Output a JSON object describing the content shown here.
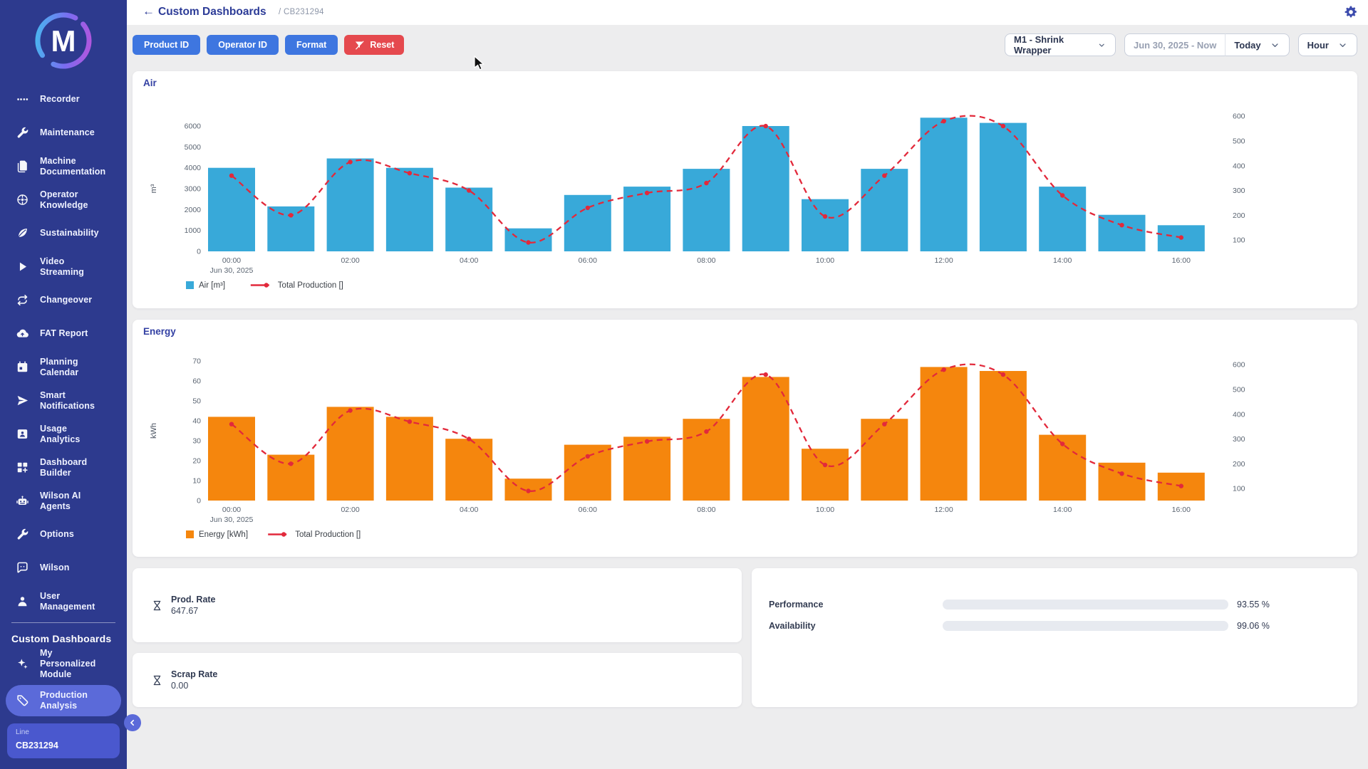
{
  "titlebar": {
    "title": "Custom Dashboards",
    "breadcrumb": "/ CB231294"
  },
  "toolbar": {
    "filter_buttons": [
      {
        "label": "Product ID"
      },
      {
        "label": "Operator ID"
      },
      {
        "label": "Format"
      }
    ],
    "reset_button": {
      "label": "Reset",
      "icon": "filter-off"
    },
    "machine_dropdown": {
      "value": "M1 - Shrink Wrapper",
      "icon": "chevron-down"
    },
    "date_range_input": {
      "value": "Jun 30, 2025 - Now"
    },
    "preset_dropdown": {
      "value": "Today",
      "icon": "chevron-down"
    },
    "granularity_dropdown": {
      "value": "Hour",
      "icon": "chevron-down"
    }
  },
  "sidebar": {
    "logo_letter": "M",
    "items": [
      {
        "label": "Recorder",
        "icon": "dots"
      },
      {
        "label": "Maintenance",
        "icon": "wrench"
      },
      {
        "label": "Machine Documentation",
        "icon": "documents"
      },
      {
        "label": "Operator Knowledge",
        "icon": "knowledge"
      },
      {
        "label": "Sustainability",
        "icon": "leaf"
      },
      {
        "label": "Video Streaming",
        "icon": "play"
      },
      {
        "label": "Changeover",
        "icon": "loop"
      },
      {
        "label": "FAT Report",
        "icon": "cloud-upload"
      },
      {
        "label": "Planning Calendar",
        "icon": "calendar"
      },
      {
        "label": "Smart Notifications",
        "icon": "send"
      },
      {
        "label": "Usage Analytics",
        "icon": "id-card"
      },
      {
        "label": "Dashboard Builder",
        "icon": "grid-plus"
      },
      {
        "label": "Wilson AI Agents",
        "icon": "robot"
      },
      {
        "label": "Options",
        "icon": "wrench"
      },
      {
        "label": "Wilson",
        "icon": "chat"
      },
      {
        "label": "User Management",
        "icon": "user"
      }
    ],
    "section_title": "Custom Dashboards",
    "section_items": [
      {
        "label": "My Personalized Module",
        "icon": "sparkle",
        "active": false
      },
      {
        "label": "Production Analysis",
        "icon": "tag",
        "active": true
      }
    ],
    "line_chip": {
      "label": "Line",
      "value": "CB231294"
    }
  },
  "chart_data": [
    {
      "type": "bar",
      "title": "Air",
      "x": [
        "00:00",
        "01:00",
        "02:00",
        "03:00",
        "04:00",
        "05:00",
        "06:00",
        "07:00",
        "08:00",
        "09:00",
        "10:00",
        "11:00",
        "12:00",
        "13:00",
        "14:00",
        "15:00",
        "16:00"
      ],
      "x_tick_interval": 2,
      "x_sub_label": "Jun 30, 2025",
      "series": [
        {
          "name": "Air [m³]",
          "type": "bar",
          "color": "#38a9d9",
          "axis": "left",
          "values": [
            4000,
            2150,
            4450,
            4000,
            3050,
            1100,
            2700,
            3100,
            3950,
            6000,
            2500,
            3950,
            6400,
            6150,
            3100,
            1750,
            1250
          ]
        },
        {
          "name": "Total Production []",
          "type": "line",
          "style": "dashed",
          "color": "#e2293b",
          "axis": "right",
          "values": [
            360,
            200,
            415,
            370,
            300,
            90,
            230,
            290,
            330,
            560,
            195,
            360,
            580,
            560,
            280,
            160,
            110
          ]
        }
      ],
      "left_axis": {
        "label": "m³",
        "ticks": [
          0,
          1000,
          2000,
          3000,
          4000,
          5000,
          6000
        ],
        "range": [
          0,
          6000
        ]
      },
      "right_axis": {
        "ticks": [
          100,
          200,
          300,
          400,
          500,
          600
        ],
        "range": [
          0,
          640
        ]
      },
      "grid": false,
      "legend_position": "bottom-left"
    },
    {
      "type": "bar",
      "title": "Energy",
      "x": [
        "00:00",
        "01:00",
        "02:00",
        "03:00",
        "04:00",
        "05:00",
        "06:00",
        "07:00",
        "08:00",
        "09:00",
        "10:00",
        "11:00",
        "12:00",
        "13:00",
        "14:00",
        "15:00",
        "16:00"
      ],
      "x_tick_interval": 2,
      "x_sub_label": "Jun 30, 2025",
      "series": [
        {
          "name": "Energy [kWh]",
          "type": "bar",
          "color": "#f5860d",
          "axis": "left",
          "values": [
            42,
            23,
            47,
            42,
            31,
            11,
            28,
            32,
            41,
            62,
            26,
            41,
            67,
            65,
            33,
            19,
            14
          ]
        },
        {
          "name": "Total Production []",
          "type": "line",
          "style": "dashed",
          "color": "#e2293b",
          "axis": "right",
          "values": [
            360,
            200,
            415,
            370,
            300,
            90,
            230,
            290,
            330,
            560,
            195,
            360,
            580,
            560,
            280,
            160,
            110
          ]
        }
      ],
      "left_axis": {
        "label": "kWh",
        "ticks": [
          0,
          10,
          20,
          30,
          40,
          50,
          60,
          70
        ],
        "range": [
          0,
          70
        ]
      },
      "right_axis": {
        "ticks": [
          100,
          200,
          300,
          400,
          500,
          600
        ],
        "range": [
          0,
          640
        ]
      },
      "grid": false,
      "legend_position": "bottom-left"
    }
  ],
  "kpi_cards": [
    {
      "icon": "hourglass",
      "label": "Prod. Rate",
      "value": "647.67"
    },
    {
      "icon": "hourglass",
      "label": "Scrap Rate",
      "value": "0.00"
    }
  ],
  "metrics_panel": {
    "rows": [
      {
        "label": "Performance",
        "percent": 93.55,
        "display": "93.55 %"
      },
      {
        "label": "Availability",
        "percent": 99.06,
        "display": "99.06 %"
      }
    ]
  },
  "colors": {
    "sidebar_bg": "#2d3a8e",
    "sidebar_active": "#5b6ad9",
    "chip_bg": "#4a58ce",
    "accent_blue": "#3e76e0",
    "danger_red": "#e5494e",
    "bar_blue": "#38a9d9",
    "bar_orange": "#f5860d",
    "line_red": "#e2293b",
    "progress_green": "#62dd9d",
    "title_indigo": "#2c3b97"
  }
}
